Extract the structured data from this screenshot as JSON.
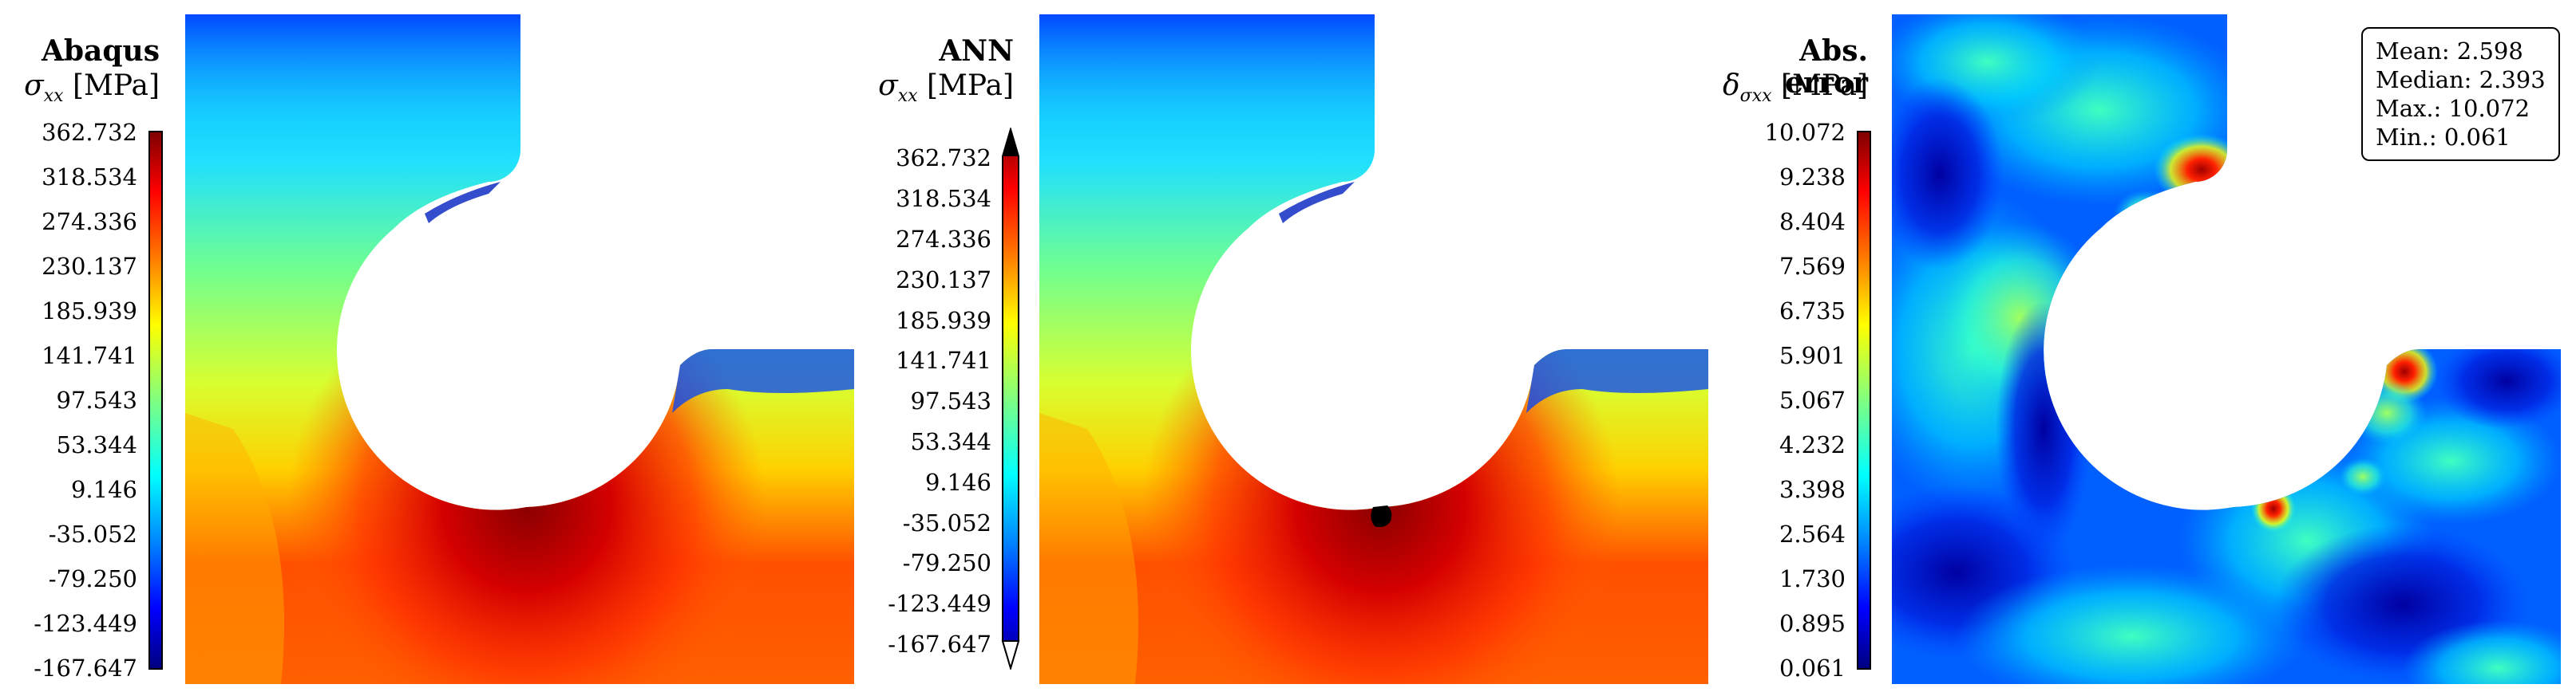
{
  "panels": [
    {
      "title": "Abaqus",
      "symbol": "σ",
      "subscript": "xx",
      "unit": "[MPa]",
      "ticks": [
        "362.732",
        "318.534",
        "274.336",
        "230.137",
        "185.939",
        "141.741",
        "97.543",
        "53.344",
        "9.146",
        "-35.052",
        "-79.250",
        "-123.449",
        "-167.647"
      ],
      "colormap": "jet"
    },
    {
      "title": "ANN",
      "symbol": "σ",
      "subscript": "xx",
      "unit": "[MPa]",
      "ticks": [
        "362.732",
        "318.534",
        "274.336",
        "230.137",
        "185.939",
        "141.741",
        "97.543",
        "53.344",
        "9.146",
        "-35.052",
        "-79.250",
        "-123.449",
        "-167.647"
      ],
      "colormap": "jet",
      "extend": "both"
    },
    {
      "title": "Abs. error",
      "symbol": "δ",
      "subscript": "σxx",
      "unit": "[MPa]",
      "ticks": [
        "10.072",
        "9.238",
        "8.404",
        "7.569",
        "6.735",
        "5.901",
        "5.067",
        "4.232",
        "3.398",
        "2.564",
        "1.730",
        "0.895",
        "0.061"
      ],
      "colormap": "jet",
      "stats": {
        "mean": "Mean: 2.598",
        "median": "Median: 2.393",
        "max": "Max.: 10.072",
        "min": "Min.: 0.061"
      }
    }
  ],
  "colors": {
    "jet_top": "#7f0000",
    "jet_red": "#ff0000",
    "jet_orange": "#ff8000",
    "jet_yellow": "#ffff00",
    "jet_green": "#80ff80",
    "jet_cyan": "#00ffff",
    "jet_blue": "#0000ff",
    "jet_bottom": "#00007f"
  }
}
